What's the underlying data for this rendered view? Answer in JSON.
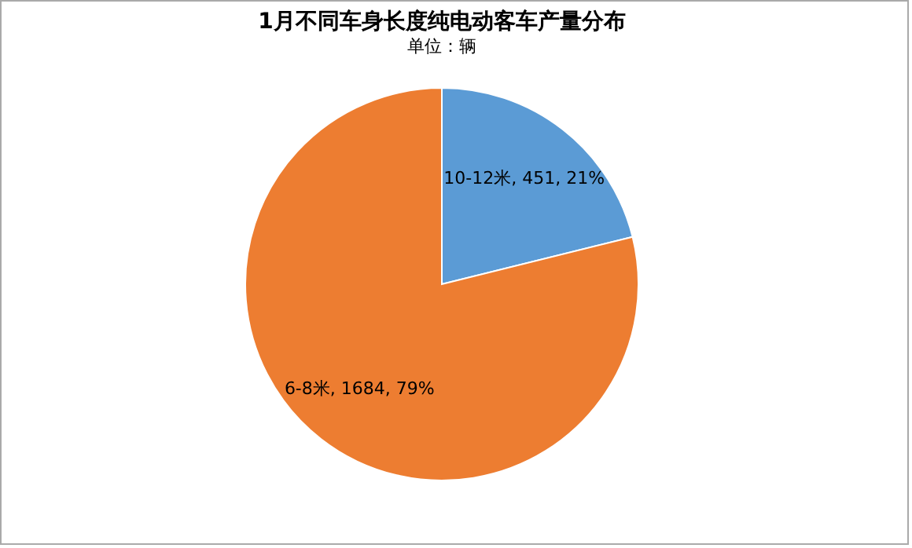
{
  "chart_data": {
    "type": "pie",
    "title": "1月不同车身长度纯电动客车产量分布",
    "subtitle": "单位：辆",
    "categories": [
      "10-12米",
      "6-8米"
    ],
    "values": [
      451,
      1684
    ],
    "colors": [
      "#5b9bd5",
      "#ed7d31"
    ],
    "value_labels": [
      "451, 21%",
      "1684, 79%"
    ],
    "legend": false
  }
}
